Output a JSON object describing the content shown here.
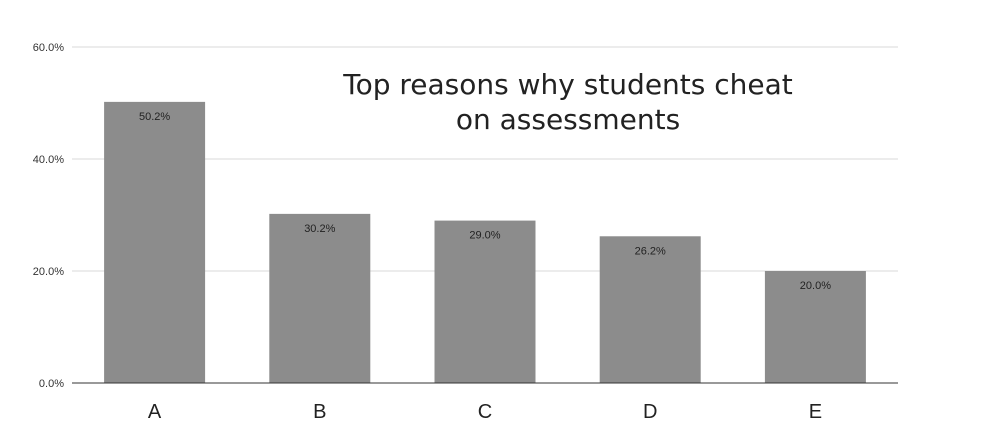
{
  "chart_data": {
    "type": "bar",
    "title": "Top reasons why students cheat on assessments",
    "title_lines": [
      "Top reasons why students cheat",
      "on assessments"
    ],
    "categories": [
      "A",
      "B",
      "C",
      "D",
      "E"
    ],
    "values": [
      50.2,
      30.2,
      29.0,
      26.2,
      20.0
    ],
    "data_labels": [
      "50.2%",
      "30.2%",
      "29.0%",
      "26.2%",
      "20.0%"
    ],
    "ylim": [
      0,
      60
    ],
    "yticks": [
      0,
      20,
      40,
      60
    ],
    "ytick_labels": [
      "0.0%",
      "20.0%",
      "40.0%",
      "60.0%"
    ],
    "xlabel": "",
    "ylabel": "",
    "grid": true,
    "legend": "none",
    "bar_color": "#8c8c8c"
  }
}
